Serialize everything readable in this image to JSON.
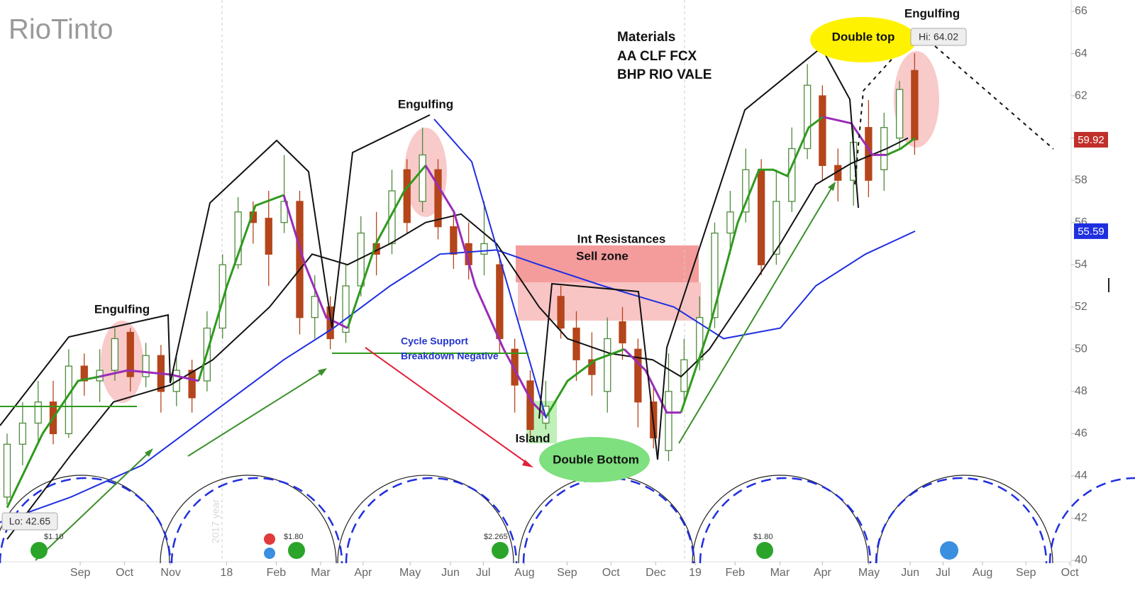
{
  "chart_data": {
    "type": "candlestick",
    "logo": "RioTinto",
    "x": [
      -1.65,
      -1.3,
      -0.95,
      -0.61,
      -0.26,
      0.09,
      0.44,
      0.78,
      1.13,
      1.48,
      1.82,
      2.17,
      2.52,
      2.86,
      3.21,
      3.56,
      3.9,
      4.25,
      4.6,
      4.95,
      5.29,
      5.64,
      5.99,
      6.33,
      6.68,
      7.03,
      7.37,
      7.72,
      8.07,
      8.42,
      8.76,
      9.11,
      9.46,
      9.8,
      10.15,
      10.5,
      10.84,
      11.19,
      11.54,
      11.89,
      12.23,
      12.58,
      12.93,
      13.27,
      13.62,
      13.97,
      14.31,
      14.66,
      15.01,
      15.36,
      15.7,
      16.05,
      16.4,
      16.74,
      17.09,
      17.44,
      17.78,
      18.13,
      18.48,
      18.82
    ],
    "open": [
      43,
      45.5,
      46.5,
      47.5,
      46,
      49.2,
      48.5,
      49,
      50.8,
      48.7,
      49.7,
      48,
      49,
      48.5,
      51,
      54,
      56.5,
      56.2,
      56,
      57,
      51.5,
      52,
      50.8,
      53,
      55,
      55,
      58.5,
      57,
      58.5,
      55.8,
      55,
      54.5,
      54,
      50,
      48.5,
      46.5,
      52.5,
      51,
      49.5,
      48,
      51.3,
      50,
      47.5,
      45.2,
      48,
      49.5,
      51.5,
      55.5,
      56.5,
      58.5,
      54.5,
      57,
      59.5,
      62,
      58.7,
      58,
      60.5,
      58.5,
      60,
      63.2
    ],
    "high": [
      46,
      47.5,
      48.5,
      48.5,
      50,
      49.8,
      50,
      51,
      51,
      50.3,
      50.2,
      49.8,
      49.5,
      51.8,
      54.5,
      57.2,
      57,
      57.5,
      59.2,
      57.5,
      53.5,
      52.5,
      54,
      56.3,
      56.5,
      58.5,
      59,
      60.5,
      59,
      56.5,
      56,
      57,
      54.5,
      50.5,
      49,
      48.5,
      53,
      51.8,
      50.8,
      51.5,
      52,
      50.5,
      48.2,
      49.8,
      50.5,
      52.5,
      56,
      57.5,
      59.5,
      59,
      58.5,
      60.5,
      63.5,
      62.5,
      59.5,
      60.5,
      61.8,
      61.2,
      62.7,
      64.02
    ],
    "low": [
      42.65,
      44.5,
      45.5,
      45.5,
      45.8,
      47.8,
      47.5,
      48.5,
      48,
      48.2,
      47,
      47.3,
      47,
      48,
      50.5,
      53.8,
      55,
      53,
      55.5,
      50.7,
      50.5,
      50,
      50.3,
      52.5,
      53.5,
      54.5,
      55.5,
      56.5,
      55.2,
      53.8,
      53.3,
      53.5,
      49.8,
      47,
      45.8,
      46.2,
      50.5,
      48.5,
      47.8,
      47,
      49.5,
      46.3,
      45.3,
      44.7,
      47.5,
      49,
      51,
      54.5,
      56,
      53.5,
      54,
      56.5,
      59,
      58,
      57,
      56.8,
      57.2,
      57.5,
      59.5,
      59.2
    ],
    "close": [
      45.5,
      46.5,
      47.5,
      46,
      49.2,
      48.5,
      49,
      50.5,
      48.7,
      49.7,
      48,
      49,
      47.7,
      51,
      54,
      56.5,
      56,
      54.5,
      57,
      51.5,
      52.5,
      50.5,
      53,
      55.5,
      54.5,
      57.5,
      56,
      59.2,
      55.8,
      54.5,
      54,
      55,
      50.5,
      48.3,
      46.2,
      47.3,
      51,
      49.5,
      48.8,
      50.5,
      50.3,
      47.5,
      45.8,
      48,
      49.5,
      51.5,
      55.5,
      56.5,
      58.5,
      54,
      57,
      59.5,
      62.5,
      58.7,
      58,
      59.8,
      58,
      60.5,
      62.3,
      59.92
    ],
    "up_color": "#4f8a3c",
    "down_color": "#b5451b",
    "last_price_color": "#c0302a",
    "xlim": [
      -1.81,
      22.35
    ],
    "xticks": [
      {
        "value": 0,
        "label": "Sep"
      },
      {
        "value": 1,
        "label": "Oct"
      },
      {
        "value": 2.04,
        "label": "Nov"
      },
      {
        "value": 3.3,
        "label": "18"
      },
      {
        "value": 4.42,
        "label": "Feb"
      },
      {
        "value": 5.42,
        "label": "Mar"
      },
      {
        "value": 6.38,
        "label": "Apr"
      },
      {
        "value": 7.44,
        "label": "May"
      },
      {
        "value": 8.35,
        "label": "Jun"
      },
      {
        "value": 9.09,
        "label": "Jul"
      },
      {
        "value": 10.02,
        "label": "Aug"
      },
      {
        "value": 10.98,
        "label": "Sep"
      },
      {
        "value": 11.97,
        "label": "Oct"
      },
      {
        "value": 12.98,
        "label": "Dec"
      },
      {
        "value": 13.87,
        "label": "19"
      },
      {
        "value": 14.77,
        "label": "Feb"
      },
      {
        "value": 15.78,
        "label": "Mar"
      },
      {
        "value": 16.74,
        "label": "Apr"
      },
      {
        "value": 17.79,
        "label": "May"
      },
      {
        "value": 18.72,
        "label": "Jun"
      },
      {
        "value": 19.46,
        "label": "Jul"
      },
      {
        "value": 20.35,
        "label": "Aug"
      },
      {
        "value": 21.33,
        "label": "Sep"
      },
      {
        "value": 22.32,
        "label": "Oct"
      }
    ],
    "ylim": [
      40,
      66
    ],
    "yticks": [
      40,
      42,
      44,
      46,
      48,
      50,
      52,
      54,
      56,
      58,
      60,
      62,
      64,
      66
    ],
    "overlays": [
      {
        "color": "#1f2fe0",
        "x": [
          -1.81,
          -0.21,
          1.39,
          2.99,
          4.59,
          5.71,
          6.99,
          8.11,
          9.39,
          10.35,
          11.79,
          13.39,
          14.51,
          15.79,
          16.59,
          17.71,
          18.83
        ],
        "values": [
          41.8,
          43,
          44.5,
          47,
          49.5,
          51,
          53,
          54.5,
          54.7,
          54,
          53,
          52,
          50.5,
          51,
          53,
          54.5,
          55.59
        ]
      },
      {
        "color": "#111111",
        "x": [
          -1.65,
          -0.21,
          0.75,
          2.03,
          2.99,
          4.27,
          5.23,
          6.03,
          6.99,
          7.79,
          8.59,
          9.39,
          10.35,
          10.99,
          11.95,
          12.91,
          13.55,
          14.19,
          14.99,
          15.79,
          16.59,
          17.39,
          18.19,
          18.67
        ],
        "values": [
          41,
          45,
          47.5,
          48.3,
          49.5,
          52,
          54.5,
          54,
          55,
          56,
          56.4,
          55,
          52,
          50.5,
          49.8,
          49.5,
          48.7,
          50,
          52.5,
          55,
          57.8,
          58.8,
          59.5,
          60
        ]
      },
      {
        "color": "#2f9a1e",
        "x": [
          -1.65,
          -0.85,
          -0.05,
          0.43,
          1.07,
          2.03,
          2.67,
          3.31,
          3.95,
          4.59,
          5.07,
          5.55,
          6.03,
          6.67,
          7.31,
          7.79,
          8.43,
          8.91,
          9.55,
          10.19,
          10.51,
          10.99,
          11.63,
          12.27,
          12.75,
          13.23,
          13.55,
          14.19,
          14.83,
          15.31,
          15.63,
          15.95,
          16.43,
          16.75,
          17.39,
          17.87,
          18.19,
          18.51,
          18.83
        ],
        "values": [
          42.5,
          46,
          48.5,
          48.7,
          null,
          null,
          48.5,
          53,
          56.8,
          57.3,
          null,
          null,
          51,
          55,
          57.5,
          58.7,
          null,
          null,
          null,
          null,
          46.8,
          48.5,
          49.5,
          50,
          null,
          null,
          47,
          51,
          56,
          58.5,
          58.5,
          58.2,
          60.5,
          61,
          null,
          null,
          59.2,
          59.5,
          60
        ]
      },
      {
        "color": "#9a2cb8",
        "x": [
          -1.65,
          -0.85,
          -0.05,
          0.43,
          1.07,
          2.03,
          2.67,
          3.31,
          3.95,
          4.59,
          5.07,
          5.55,
          6.03,
          6.67,
          7.31,
          7.79,
          8.43,
          8.91,
          9.55,
          10.19,
          10.51,
          10.99,
          11.63,
          12.27,
          12.75,
          13.23,
          13.55,
          14.19,
          14.83,
          15.31,
          15.63,
          15.95,
          16.43,
          16.75,
          17.39,
          17.87,
          18.19,
          18.51,
          18.83
        ],
        "values": [
          null,
          null,
          null,
          48.7,
          49,
          48.8,
          48.5,
          null,
          null,
          57.3,
          54,
          51.5,
          51,
          null,
          null,
          58.7,
          56.5,
          53,
          50,
          47.5,
          46.8,
          null,
          null,
          50,
          49,
          47,
          47,
          null,
          null,
          null,
          null,
          null,
          null,
          61,
          60.7,
          59.2,
          59.2,
          null,
          null
        ]
      }
    ],
    "annotations": [
      "Engulfing",
      "Engulfing",
      "Engulfing",
      "Materials",
      "AA CLF FCX",
      "BHP RIO VALE",
      "Double top",
      "Hi: 64.02",
      "Int Resistances",
      "Sell zone",
      "Cycle Support",
      "Breakdown Negative",
      "Island",
      "Double Bottom",
      "Lo: 42.65"
    ],
    "watermark": "2017 year",
    "dividends": [
      "$1.10",
      "$1.80",
      "$2.265",
      "$1.80"
    ]
  }
}
